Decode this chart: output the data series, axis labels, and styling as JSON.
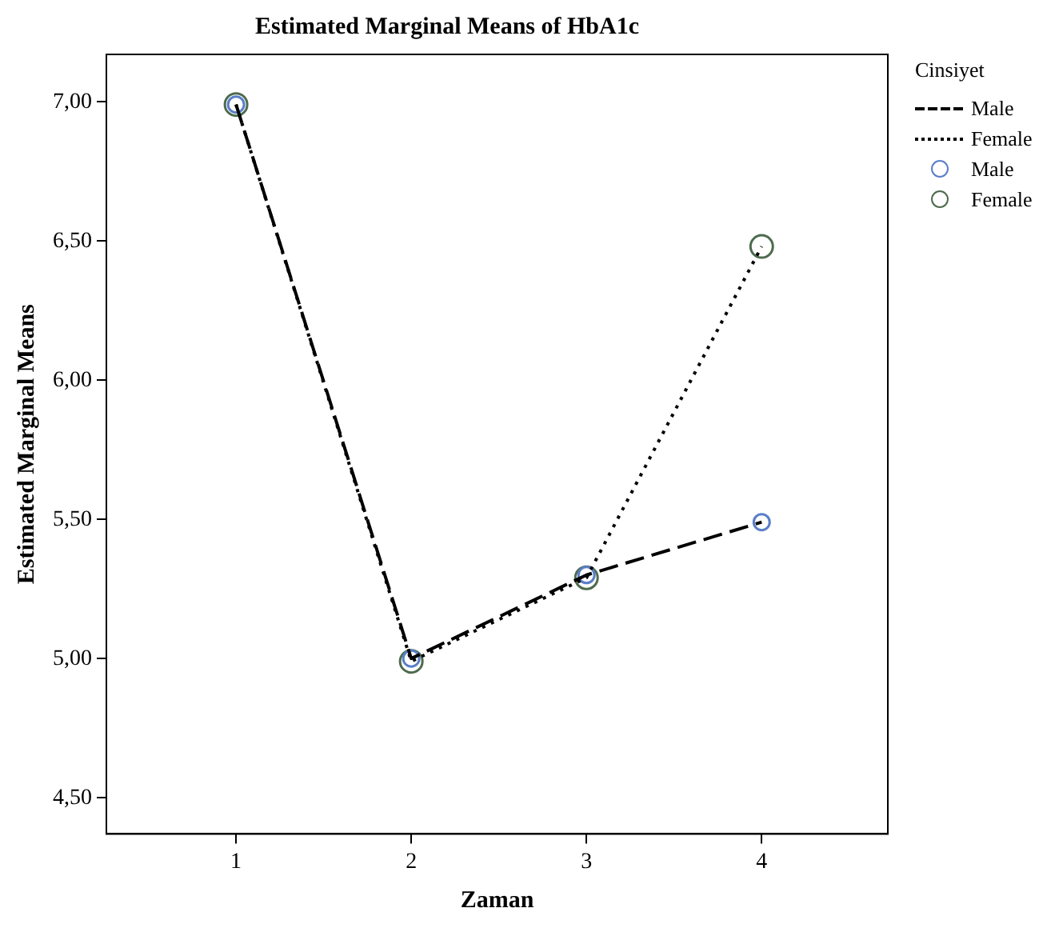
{
  "chart_data": {
    "type": "line",
    "title": "Estimated Marginal Means of HbA1c",
    "xlabel": "Zaman",
    "ylabel": "Estimated Marginal Means",
    "legend_title": "Cinsiyet",
    "x": [
      1,
      2,
      3,
      4
    ],
    "xlim": [
      0.26,
      4.72
    ],
    "xticks": [
      1,
      2,
      3,
      4
    ],
    "ylim": [
      4.37,
      7.17
    ],
    "yticks": [
      {
        "value": 4.5,
        "label": "4,50"
      },
      {
        "value": 5,
        "label": "5,00"
      },
      {
        "value": 5.5,
        "label": "5,50"
      },
      {
        "value": 6,
        "label": "6,00"
      },
      {
        "value": 6.5,
        "label": "6,50"
      },
      {
        "value": 7,
        "label": "7,00"
      }
    ],
    "grid": false,
    "legend": "right",
    "series": [
      {
        "name": "Male",
        "line_style": "dashed",
        "marker": "none",
        "color": "#000000",
        "values": [
          6.99,
          5.0,
          5.3,
          5.49
        ]
      },
      {
        "name": "Female",
        "line_style": "dotted",
        "marker": "none",
        "color": "#000000",
        "values": [
          6.99,
          4.99,
          5.29,
          6.48
        ]
      },
      {
        "name": "Male",
        "type": "scatter",
        "marker": "circle",
        "color": "#5a7ec8",
        "values": [
          6.99,
          5.0,
          5.3,
          5.49
        ]
      },
      {
        "name": "Female",
        "type": "scatter",
        "marker": "circle",
        "color": "#4d6b4d",
        "values": [
          6.99,
          4.99,
          5.29,
          6.48
        ]
      }
    ]
  }
}
